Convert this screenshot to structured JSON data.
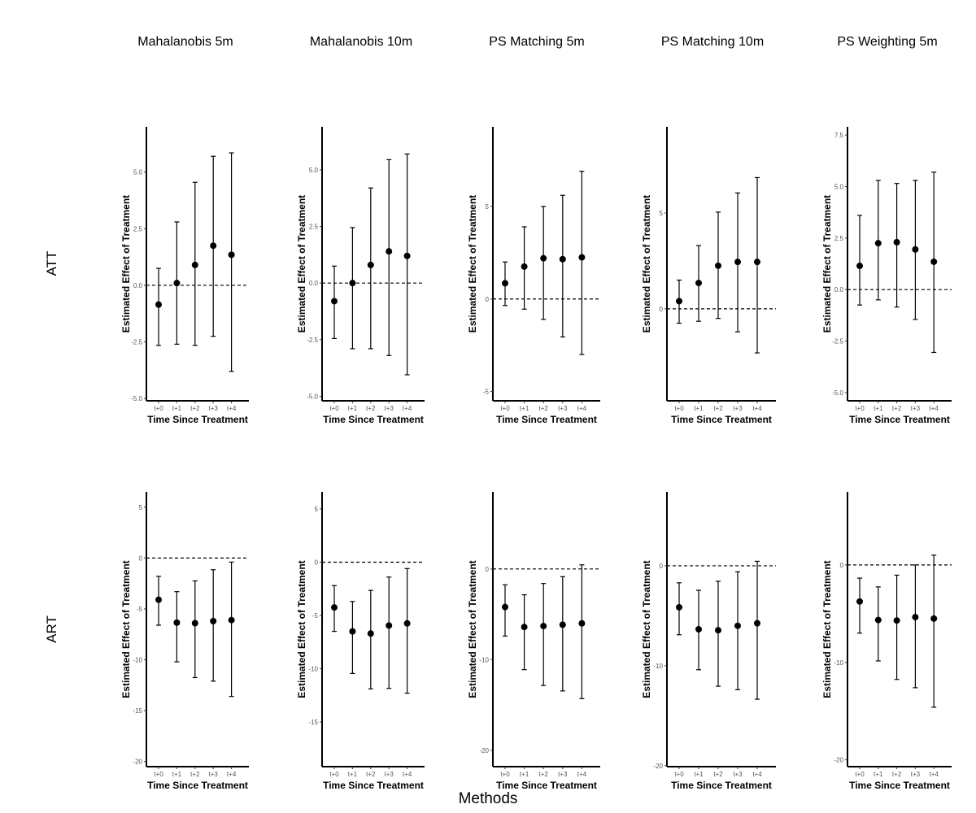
{
  "figure": {
    "column_titles": [
      "Mahalanobis 5m",
      "Mahalanobis 10m",
      "PS Matching 5m",
      "PS Matching 10m",
      "PS Weighting 5m"
    ],
    "row_titles": [
      "ATT",
      "ART"
    ],
    "xlabel": "Methods"
  },
  "chart_data": [
    {
      "type": "scatter",
      "panel": "ATT · Mahalanobis 5m",
      "categories": [
        "t+0",
        "t+1",
        "t+2",
        "t+3",
        "t+4"
      ],
      "values": [
        -0.85,
        0.1,
        0.9,
        1.75,
        1.35
      ],
      "lower": [
        -2.65,
        -2.6,
        -2.65,
        -2.25,
        -3.8
      ],
      "upper": [
        0.75,
        2.8,
        4.55,
        5.7,
        5.85
      ],
      "ylim": [
        -5.1,
        7.0
      ],
      "yticks": [
        -5,
        -2.5,
        0,
        2.5,
        5
      ],
      "ytick_labels": [
        "-5.0",
        "-2.5",
        "0.0",
        "2.5",
        "5.0"
      ],
      "reference_line": 0,
      "xlabel": "Time Since Treatment",
      "ylabel": "Estimated Effect of Treatment"
    },
    {
      "type": "scatter",
      "panel": "ATT · Mahalanobis 10m",
      "categories": [
        "t+0",
        "t+1",
        "t+2",
        "t+3",
        "t+4"
      ],
      "values": [
        -0.8,
        0.0,
        0.8,
        1.4,
        1.2
      ],
      "lower": [
        -2.45,
        -2.9,
        -2.9,
        -3.2,
        -4.05
      ],
      "upper": [
        0.75,
        2.45,
        4.2,
        5.45,
        5.7
      ],
      "ylim": [
        -5.2,
        6.9
      ],
      "yticks": [
        -5,
        -2.5,
        0,
        2.5,
        5
      ],
      "ytick_labels": [
        "-5.0",
        "-2.5",
        "0.0",
        "2.5",
        "5.0"
      ],
      "reference_line": 0,
      "xlabel": "Time Since Treatment",
      "ylabel": "Estimated Effect of Treatment"
    },
    {
      "type": "scatter",
      "panel": "ATT · PS Matching 5m",
      "categories": [
        "t+0",
        "t+1",
        "t+2",
        "t+3",
        "t+4"
      ],
      "values": [
        0.85,
        1.75,
        2.2,
        2.15,
        2.25
      ],
      "lower": [
        -0.35,
        -0.55,
        -1.1,
        -2.05,
        -3.0
      ],
      "upper": [
        2.0,
        3.9,
        5.0,
        5.6,
        6.9
      ],
      "ylim": [
        -5.5,
        9.3
      ],
      "yticks": [
        -5,
        0,
        5
      ],
      "ytick_labels": [
        "-5",
        "0",
        "5"
      ],
      "reference_line": 0,
      "xlabel": "Time Since Treatment",
      "ylabel": "Estimated Effect of Treatment"
    },
    {
      "type": "scatter",
      "panel": "ATT · PS Matching 10m",
      "categories": [
        "t+0",
        "t+1",
        "t+2",
        "t+3",
        "t+4"
      ],
      "values": [
        0.4,
        1.35,
        2.25,
        2.45,
        2.45
      ],
      "lower": [
        -0.75,
        -0.65,
        -0.5,
        -1.2,
        -2.3
      ],
      "upper": [
        1.5,
        3.3,
        5.05,
        6.05,
        6.85
      ],
      "ylim": [
        -4.8,
        9.5
      ],
      "yticks": [
        0,
        5
      ],
      "ytick_labels": [
        "0",
        "5"
      ],
      "reference_line": 0,
      "xlabel": "Time Since Treatment",
      "ylabel": "Estimated Effect of Treatment"
    },
    {
      "type": "scatter",
      "panel": "ATT · PS Weighting 5m",
      "categories": [
        "t+0",
        "t+1",
        "t+2",
        "t+3",
        "t+4"
      ],
      "values": [
        1.15,
        2.25,
        2.3,
        1.95,
        1.35
      ],
      "lower": [
        -0.75,
        -0.5,
        -0.85,
        -1.45,
        -3.05
      ],
      "upper": [
        3.6,
        5.3,
        5.15,
        5.3,
        5.7
      ],
      "ylim": [
        -5.4,
        7.9
      ],
      "yticks": [
        -5,
        -2.5,
        0,
        2.5,
        5,
        7.5
      ],
      "ytick_labels": [
        "-5.0",
        "-2.5",
        "0.0",
        "2.5",
        "5.0",
        "7.5"
      ],
      "reference_line": 0,
      "xlabel": "Time Since Treatment",
      "ylabel": "Estimated Effect of Treatment"
    },
    {
      "type": "scatter",
      "panel": "ART · Mahalanobis 5m",
      "categories": [
        "t+0",
        "t+1",
        "t+2",
        "t+3",
        "t+4"
      ],
      "values": [
        -4.1,
        -6.35,
        -6.4,
        -6.2,
        -6.1
      ],
      "lower": [
        -6.6,
        -10.2,
        -11.75,
        -12.1,
        -13.6
      ],
      "upper": [
        -1.8,
        -3.3,
        -2.25,
        -1.15,
        -0.4
      ],
      "ylim": [
        -20.5,
        6.5
      ],
      "yticks": [
        -20,
        -15,
        -10,
        -5,
        0,
        5
      ],
      "ytick_labels": [
        "-20",
        "-15",
        "-10",
        "-5",
        "0",
        "5"
      ],
      "reference_line": 0,
      "xlabel": "Time Since Treatment",
      "ylabel": "Estimated Effect of Treatment"
    },
    {
      "type": "scatter",
      "panel": "ART · Mahalanobis 10m",
      "categories": [
        "t+0",
        "t+1",
        "t+2",
        "t+3",
        "t+4"
      ],
      "values": [
        -4.25,
        -6.5,
        -6.7,
        -5.95,
        -5.75
      ],
      "lower": [
        -6.5,
        -10.45,
        -11.9,
        -11.85,
        -12.3
      ],
      "upper": [
        -2.2,
        -3.7,
        -2.65,
        -1.4,
        -0.6
      ],
      "ylim": [
        -19.2,
        6.6
      ],
      "yticks": [
        -15,
        -10,
        -5,
        0,
        5
      ],
      "ytick_labels": [
        "-15",
        "-10",
        "-5",
        "0",
        "5"
      ],
      "reference_line": 0,
      "xlabel": "Time Since Treatment",
      "ylabel": "Estimated Effect of Treatment"
    },
    {
      "type": "scatter",
      "panel": "ART · PS Matching 5m",
      "categories": [
        "t+0",
        "t+1",
        "t+2",
        "t+3",
        "t+4"
      ],
      "values": [
        -4.2,
        -6.4,
        -6.3,
        -6.15,
        -6.0
      ],
      "lower": [
        -7.4,
        -11.1,
        -12.85,
        -13.45,
        -14.3
      ],
      "upper": [
        -1.75,
        -2.85,
        -1.6,
        -0.85,
        0.45
      ],
      "ylim": [
        -21.8,
        8.5
      ],
      "yticks": [
        -20,
        -10,
        0
      ],
      "ytick_labels": [
        "-20",
        "-10",
        "0"
      ],
      "reference_line": 0,
      "xlabel": "Time Since Treatment",
      "ylabel": "Estimated Effect of Treatment"
    },
    {
      "type": "scatter",
      "panel": "ART · PS Matching 10m",
      "categories": [
        "t+0",
        "t+1",
        "t+2",
        "t+3",
        "t+4"
      ],
      "values": [
        -4.15,
        -6.35,
        -6.45,
        -6.0,
        -5.75
      ],
      "lower": [
        -6.9,
        -10.4,
        -12.05,
        -12.4,
        -13.35
      ],
      "upper": [
        -1.7,
        -2.45,
        -1.55,
        -0.6,
        0.45
      ],
      "ylim": [
        -20.1,
        7.4
      ],
      "yticks": [
        -20,
        -10,
        0
      ],
      "ytick_labels": [
        "-20",
        "-10",
        "0"
      ],
      "reference_line": 0,
      "xlabel": "Time Since Treatment",
      "ylabel": "Estimated Effect of Treatment"
    },
    {
      "type": "scatter",
      "panel": "ART · PS Weighting 5m",
      "categories": [
        "t+0",
        "t+1",
        "t+2",
        "t+3",
        "t+4"
      ],
      "values": [
        -3.75,
        -5.65,
        -5.7,
        -5.35,
        -5.5
      ],
      "lower": [
        -7.0,
        -9.85,
        -11.75,
        -12.6,
        -14.6
      ],
      "upper": [
        -1.35,
        -2.25,
        -1.05,
        0.0,
        1.0
      ],
      "ylim": [
        -20.7,
        7.5
      ],
      "yticks": [
        -20,
        -10,
        0
      ],
      "ytick_labels": [
        "-20",
        "-10",
        "0"
      ],
      "reference_line": 0,
      "xlabel": "Time Since Treatment",
      "ylabel": "Estimated Effect of Treatment"
    }
  ]
}
